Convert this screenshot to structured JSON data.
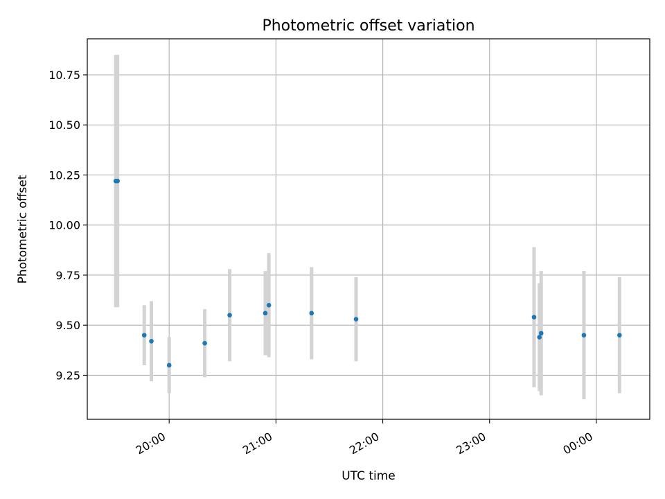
{
  "chart_data": {
    "type": "scatter",
    "title": "Photometric offset variation",
    "xlabel": "UTC time",
    "ylabel": "Photometric offset",
    "grid": true,
    "error_bar_color": "#d3d3d3",
    "point_color": "#1f77b4",
    "x_axis_unit": "UTC time",
    "xlim": [
      "19:14",
      "00:30"
    ],
    "ylim": [
      9.03,
      10.93
    ],
    "x_ticks": [
      "20:00",
      "21:00",
      "22:00",
      "23:00",
      "00:00"
    ],
    "y_ticks": [
      "9.25",
      "9.50",
      "9.75",
      "10.00",
      "10.25",
      "10.50",
      "10.75"
    ],
    "points": [
      {
        "time": "19:30",
        "y": 10.22,
        "err": 0.63
      },
      {
        "time": "19:31",
        "y": 10.22,
        "err": 0.63
      },
      {
        "time": "19:46",
        "y": 9.45,
        "err": 0.15
      },
      {
        "time": "19:50",
        "y": 9.42,
        "err": 0.2
      },
      {
        "time": "20:00",
        "y": 9.3,
        "err": 0.14
      },
      {
        "time": "20:20",
        "y": 9.41,
        "err": 0.17
      },
      {
        "time": "20:34",
        "y": 9.55,
        "err": 0.23
      },
      {
        "time": "20:54",
        "y": 9.56,
        "err": 0.21
      },
      {
        "time": "20:56",
        "y": 9.6,
        "err": 0.26
      },
      {
        "time": "21:20",
        "y": 9.56,
        "err": 0.23
      },
      {
        "time": "21:45",
        "y": 9.53,
        "err": 0.21
      },
      {
        "time": "23:25",
        "y": 9.54,
        "err": 0.35
      },
      {
        "time": "23:28",
        "y": 9.44,
        "err": 0.27
      },
      {
        "time": "23:29",
        "y": 9.46,
        "err": 0.31
      },
      {
        "time": "23:53",
        "y": 9.45,
        "err": 0.32
      },
      {
        "time": "00:13",
        "y": 9.45,
        "err": 0.29
      }
    ]
  }
}
